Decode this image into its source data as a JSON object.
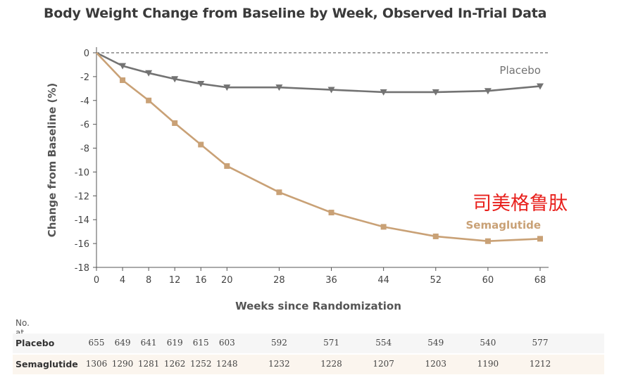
{
  "title": "Body Weight Change from Baseline by Week, Observed In-Trial Data",
  "annotation": "司美格鲁肽",
  "chart_data": {
    "type": "line",
    "title": "Body Weight Change from Baseline by Week, Observed In-Trial Data",
    "xlabel": "Weeks since Randomization",
    "ylabel": "Change from Baseline (%)",
    "xlim": [
      0,
      68
    ],
    "ylim": [
      -18,
      0
    ],
    "xticks": [
      0,
      4,
      8,
      12,
      16,
      20,
      28,
      36,
      44,
      52,
      60,
      68
    ],
    "yticks": [
      0,
      -2,
      -4,
      -6,
      -8,
      -10,
      -12,
      -14,
      -16,
      -18
    ],
    "reference_line": 0,
    "grid": false,
    "colors": {
      "placebo": "#737373",
      "semaglutide": "#c9a176",
      "annotation": "#e8201c"
    },
    "series": [
      {
        "name": "Placebo",
        "x": [
          0,
          4,
          8,
          12,
          16,
          20,
          28,
          36,
          44,
          52,
          60,
          68
        ],
        "values": [
          0,
          -1.1,
          -1.7,
          -2.2,
          -2.6,
          -2.9,
          -2.9,
          -3.1,
          -3.3,
          -3.3,
          -3.2,
          -2.8
        ]
      },
      {
        "name": "Semaglutide",
        "x": [
          0,
          4,
          8,
          12,
          16,
          20,
          28,
          36,
          44,
          52,
          60,
          68
        ],
        "values": [
          0,
          -2.3,
          -4.0,
          -5.9,
          -7.7,
          -9.5,
          -11.7,
          -13.4,
          -14.6,
          -15.4,
          -15.8,
          -15.6
        ]
      }
    ]
  },
  "risk_table": {
    "header": "No. at Risk",
    "weeks": [
      0,
      4,
      8,
      12,
      16,
      20,
      28,
      36,
      44,
      52,
      60,
      68
    ],
    "rows": [
      {
        "label": "Placebo",
        "values": [
          "655",
          "649",
          "641",
          "619",
          "615",
          "603",
          "592",
          "571",
          "554",
          "549",
          "540",
          "577"
        ]
      },
      {
        "label": "Semaglutide",
        "values": [
          "1306",
          "1290",
          "1281",
          "1262",
          "1252",
          "1248",
          "1232",
          "1228",
          "1207",
          "1203",
          "1190",
          "1212"
        ]
      }
    ]
  }
}
